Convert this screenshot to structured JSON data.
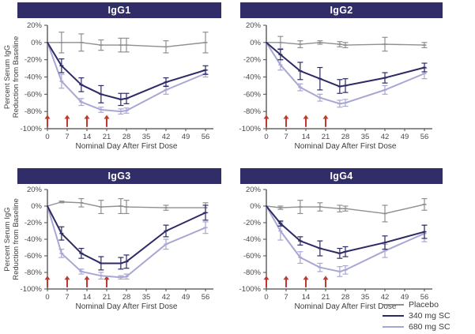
{
  "figure": {
    "xlabel": "Nominal Day After First Dose",
    "ylabel_line1": "Percent Serum IgG",
    "ylabel_line2": "Reduction from Baseline",
    "colors": {
      "title_bar_bg": "#312d69",
      "title_bar_text": "#ffffff",
      "placebo": "#8f8f8f",
      "dose340": "#2d2a66",
      "dose680": "#a8a7d4",
      "dose_arrow": "#c0392f",
      "axis": "#4a4a4a",
      "tick_text": "#4a4a4a"
    },
    "legend": [
      {
        "label": "Placebo",
        "color_key": "placebo"
      },
      {
        "label": "340 mg SC",
        "color_key": "dose340"
      },
      {
        "label": "680 mg SC",
        "color_key": "dose680"
      }
    ]
  },
  "chart_data": [
    {
      "type": "line",
      "title": "IgG1",
      "xlabel": "Nominal Day After First Dose",
      "ylabel": "Percent Serum IgG Reduction from Baseline",
      "x": [
        0,
        5,
        12,
        19,
        26,
        28,
        42,
        56
      ],
      "x_ticks": [
        0,
        7,
        14,
        21,
        28,
        35,
        42,
        49,
        56
      ],
      "y_ticks": [
        20,
        0,
        -20,
        -40,
        -60,
        -80,
        -100
      ],
      "y_tick_suffix": "%",
      "xlim": [
        0,
        56
      ],
      "ylim": [
        -100,
        20
      ],
      "dose_arrow_days": [
        0,
        7,
        14,
        21
      ],
      "series": [
        {
          "name": "Placebo",
          "color_key": "placebo",
          "values": [
            0,
            0,
            0,
            -3,
            -3,
            -3,
            -5,
            0
          ],
          "errors": [
            0,
            12,
            10,
            6,
            8,
            8,
            7,
            12
          ]
        },
        {
          "name": "340 mg SC",
          "color_key": "dose340",
          "values": [
            0,
            -27,
            -49,
            -60,
            -66,
            -65,
            -46,
            -32
          ],
          "errors": [
            0,
            8,
            8,
            10,
            7,
            6,
            5,
            5
          ]
        },
        {
          "name": "680 mg SC",
          "color_key": "dose680",
          "values": [
            0,
            -45,
            -69,
            -78,
            -80,
            -79,
            -55,
            -36
          ],
          "errors": [
            0,
            8,
            4,
            3,
            3,
            3,
            5,
            4
          ]
        }
      ]
    },
    {
      "type": "line",
      "title": "IgG2",
      "xlabel": "Nominal Day After First Dose",
      "x": [
        0,
        5,
        12,
        19,
        26,
        28,
        42,
        56
      ],
      "x_ticks": [
        0,
        7,
        14,
        21,
        28,
        35,
        42,
        49,
        56
      ],
      "y_ticks": [
        20,
        0,
        -20,
        -40,
        -60,
        -80,
        -100
      ],
      "y_tick_suffix": "%",
      "xlim": [
        0,
        56
      ],
      "ylim": [
        -100,
        20
      ],
      "dose_arrow_days": [
        0,
        7,
        14,
        21
      ],
      "series": [
        {
          "name": "Placebo",
          "color_key": "placebo",
          "values": [
            0,
            0,
            -2,
            0,
            -2,
            -3,
            -2,
            -3
          ],
          "errors": [
            0,
            7,
            4,
            2,
            3,
            3,
            8,
            3
          ]
        },
        {
          "name": "340 mg SC",
          "color_key": "dose340",
          "values": [
            0,
            -14,
            -33,
            -42,
            -51,
            -50,
            -41,
            -29
          ],
          "errors": [
            0,
            6,
            10,
            13,
            8,
            8,
            6,
            5
          ]
        },
        {
          "name": "680 mg SC",
          "color_key": "dose680",
          "values": [
            0,
            -26,
            -52,
            -64,
            -71,
            -70,
            -55,
            -36
          ],
          "errors": [
            0,
            6,
            4,
            4,
            4,
            4,
            5,
            6
          ]
        }
      ]
    },
    {
      "type": "line",
      "title": "IgG3",
      "xlabel": "Nominal Day After First Dose",
      "ylabel": "Percent Serum IgG Reduction from Baseline",
      "x": [
        0,
        5,
        12,
        19,
        26,
        28,
        42,
        56
      ],
      "x_ticks": [
        0,
        7,
        14,
        21,
        28,
        35,
        42,
        49,
        56
      ],
      "y_ticks": [
        20,
        0,
        -20,
        -40,
        -60,
        -80,
        -100
      ],
      "y_tick_suffix": "%",
      "xlim": [
        0,
        56
      ],
      "ylim": [
        -100,
        20
      ],
      "dose_arrow_days": [
        0,
        7,
        14,
        21
      ],
      "series": [
        {
          "name": "Placebo",
          "color_key": "placebo",
          "values": [
            0,
            5,
            4,
            -1,
            0,
            -1,
            -2,
            -2
          ],
          "errors": [
            0,
            1,
            5,
            8,
            9,
            8,
            3,
            6
          ]
        },
        {
          "name": "340 mg SC",
          "color_key": "dose340",
          "values": [
            0,
            -33,
            -57,
            -69,
            -69,
            -67,
            -30,
            -8
          ],
          "errors": [
            0,
            8,
            6,
            8,
            7,
            8,
            7,
            9
          ]
        },
        {
          "name": "680 mg SC",
          "color_key": "dose680",
          "values": [
            0,
            -57,
            -79,
            -84,
            -86,
            -85,
            -46,
            -26
          ],
          "errors": [
            0,
            5,
            3,
            4,
            2,
            3,
            6,
            7
          ]
        }
      ]
    },
    {
      "type": "line",
      "title": "IgG4",
      "xlabel": "Nominal Day After First Dose",
      "x": [
        0,
        5,
        12,
        19,
        26,
        28,
        42,
        56
      ],
      "x_ticks": [
        0,
        7,
        14,
        21,
        28,
        35,
        42,
        49,
        56
      ],
      "y_ticks": [
        20,
        0,
        -20,
        -40,
        -60,
        -80,
        -100
      ],
      "y_tick_suffix": "%",
      "xlim": [
        0,
        56
      ],
      "ylim": [
        -100,
        20
      ],
      "dose_arrow_days": [
        0,
        7,
        14,
        21
      ],
      "series": [
        {
          "name": "Placebo",
          "color_key": "placebo",
          "values": [
            0,
            -2,
            -1,
            -1,
            -3,
            -3,
            -9,
            2
          ],
          "errors": [
            0,
            2,
            8,
            5,
            4,
            3,
            10,
            7
          ]
        },
        {
          "name": "340 mg SC",
          "color_key": "dose340",
          "values": [
            0,
            -21,
            -42,
            -51,
            -57,
            -55,
            -44,
            -31
          ],
          "errors": [
            0,
            3,
            5,
            9,
            6,
            6,
            8,
            8
          ]
        },
        {
          "name": "680 mg SC",
          "color_key": "dose680",
          "values": [
            0,
            -30,
            -62,
            -74,
            -79,
            -77,
            -54,
            -33
          ],
          "errors": [
            0,
            11,
            7,
            5,
            6,
            5,
            8,
            10
          ]
        }
      ]
    }
  ]
}
